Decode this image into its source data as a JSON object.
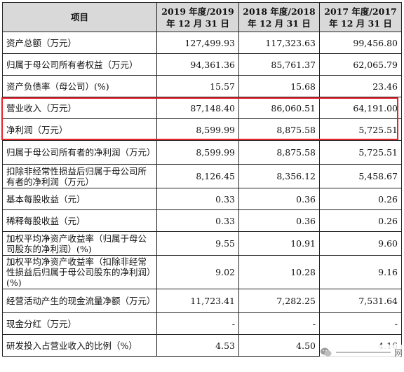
{
  "headers": {
    "item": "项目",
    "col1": "2019 年度/2019 年 12 月 31 日",
    "col2": "2018 年度/2018 年 12 月 31 日",
    "col3": "2017 年度/2017 年 12 月 31 日"
  },
  "rows": [
    {
      "label": "资产总额（万元）",
      "v1": "127,499.93",
      "v2": "117,323.63",
      "v3": "99,456.80"
    },
    {
      "label": "归属于母公司所有者权益（万元）",
      "v1": "94,361.36",
      "v2": "85,761.37",
      "v3": "62,065.79"
    },
    {
      "label": "资产负债率（母公司）(%)",
      "v1": "15.57",
      "v2": "15.68",
      "v3": "23.46"
    },
    {
      "label": "营业收入（万元）",
      "v1": "87,148.40",
      "v2": "86,060.51",
      "v3": "64,191.00"
    },
    {
      "label": "净利润（万元）",
      "v1": "8,599.99",
      "v2": "8,875.58",
      "v3": "5,725.51"
    },
    {
      "label": "归属于母公司所有者的净利润（万元）",
      "v1": "8,599.99",
      "v2": "8,875.58",
      "v3": "5,725.51"
    },
    {
      "label": "扣除非经常性损益后归属于母公司所有者的净利润（万元）",
      "v1": "8,126.45",
      "v2": "8,356.12",
      "v3": "5,458.67"
    },
    {
      "label": "基本每股收益（元）",
      "v1": "0.33",
      "v2": "0.36",
      "v3": "0.26"
    },
    {
      "label": "稀释每股收益（元）",
      "v1": "0.33",
      "v2": "0.36",
      "v3": "0.26"
    },
    {
      "label": "加权平均净资产收益率（归属于母公司股东的净利润）(%)",
      "v1": "9.55",
      "v2": "10.91",
      "v3": "9.60"
    },
    {
      "label": "加权平均净资产收益率（扣除非经常性损益后归属于母公司股东的净利润）(%)",
      "v1": "9.02",
      "v2": "10.28",
      "v3": "9.16"
    },
    {
      "label": "经营活动产生的现金流量净额（万元）",
      "v1": "11,723.41",
      "v2": "7,282.25",
      "v3": "7,531.64"
    },
    {
      "label": "现金分红（万元）",
      "v1": "-",
      "v2": "-",
      "v3": "-"
    },
    {
      "label": "研发投入占营业收入的比例（%）",
      "v1": "4.53",
      "v2": "4.50",
      "v3": "4.16"
    }
  ],
  "watermark": {
    "text": "网",
    "icon": "wechat-icon"
  }
}
